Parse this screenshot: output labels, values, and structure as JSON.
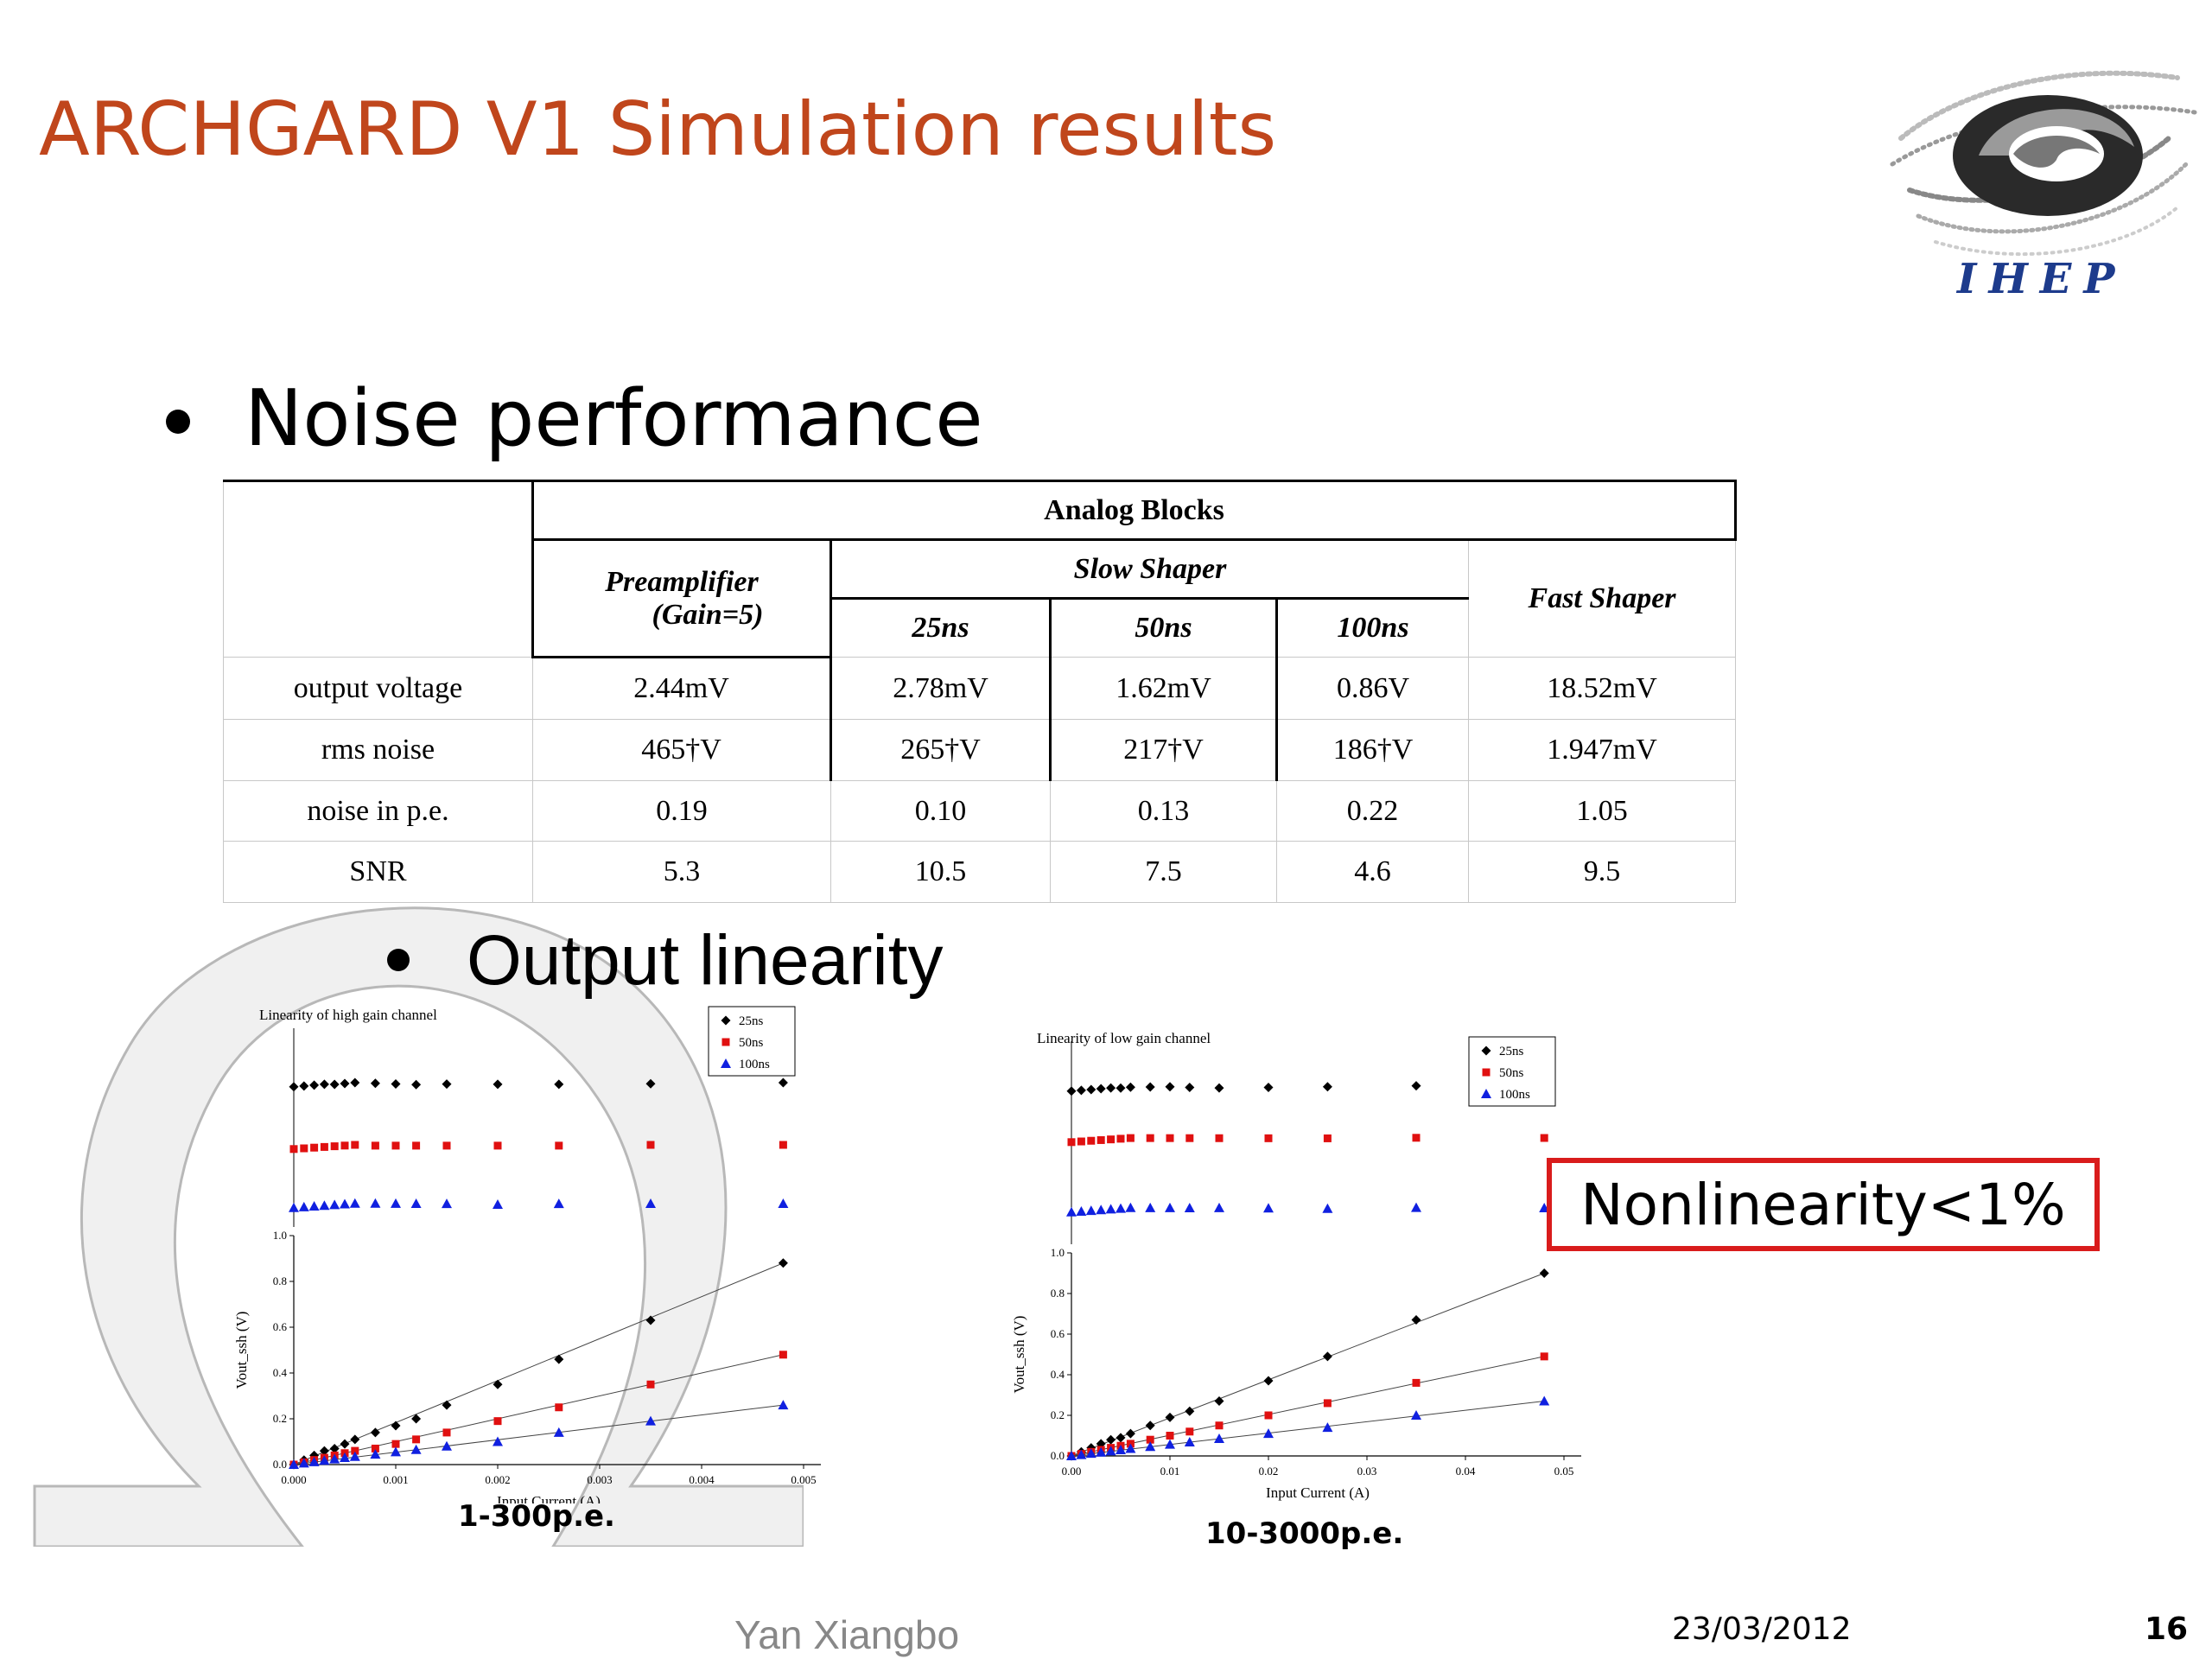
{
  "slide": {
    "title": "ARCHGARD V1 Simulation results",
    "bullet1": "Noise performance",
    "bullet2": "Output linearity",
    "logo_text": "IHEP",
    "caption_left": "1-300p.e.",
    "caption_right": "10-3000p.e.",
    "callout": "Nonlinearity<1%",
    "author": "Yan Xiangbo",
    "date": "23/03/2012",
    "page_number": "16"
  },
  "table": {
    "top_header": "Analog Blocks",
    "preamp": "Preamplifier",
    "preamp_gain": "(Gain=5)",
    "slow_shaper": "Slow Shaper",
    "fast_shaper": "Fast Shaper",
    "sub": [
      "25ns",
      "50ns",
      "100ns"
    ],
    "rows": [
      {
        "label": "output voltage",
        "values": [
          "2.44mV",
          "2.78mV",
          "1.62mV",
          "0.86V",
          "18.52mV"
        ]
      },
      {
        "label": "rms noise",
        "values": [
          "465†V",
          "265†V",
          "217†V",
          "186†V",
          "1.947mV"
        ]
      },
      {
        "label": "noise in p.e.",
        "values": [
          "0.19",
          "0.10",
          "0.13",
          "0.22",
          "1.05"
        ]
      },
      {
        "label": "SNR",
        "values": [
          "5.3",
          "10.5",
          "7.5",
          "4.6",
          "9.5"
        ]
      }
    ]
  },
  "colors": {
    "title": "#c0461c",
    "series": [
      "#000000",
      "#e01010",
      "#1020e0"
    ],
    "callout_border": "#d91c1c"
  },
  "chart_data": [
    {
      "type": "scatter",
      "title": "Linearity of high gain channel",
      "xlabel": "Input Current (A)",
      "ylabel": "Vout_ssh (V)",
      "xlim": [
        0,
        0.005
      ],
      "ylim": [
        0,
        1.0
      ],
      "xticks": [
        "0.000",
        "0.001",
        "0.002",
        "0.003",
        "0.004",
        "0.005"
      ],
      "yticks": [
        "0.0",
        "0.2",
        "0.4",
        "0.6",
        "0.8",
        "1.0"
      ],
      "legend": [
        "25ns",
        "50ns",
        "100ns"
      ],
      "legend_position": "top-right",
      "x": [
        0.0,
        0.0001,
        0.0002,
        0.0003,
        0.0004,
        0.0005,
        0.0006,
        0.0008,
        0.001,
        0.0012,
        0.0015,
        0.002,
        0.0026,
        0.0035,
        0.0048
      ],
      "series": [
        {
          "name": "25ns",
          "marker": "diamond",
          "values": [
            0.0,
            0.02,
            0.04,
            0.06,
            0.07,
            0.09,
            0.11,
            0.14,
            0.17,
            0.2,
            0.26,
            0.35,
            0.46,
            0.63,
            0.88
          ]
        },
        {
          "name": "50ns",
          "marker": "square",
          "values": [
            0.0,
            0.01,
            0.02,
            0.03,
            0.04,
            0.05,
            0.06,
            0.07,
            0.09,
            0.11,
            0.14,
            0.19,
            0.25,
            0.35,
            0.48
          ]
        },
        {
          "name": "100ns",
          "marker": "triangle",
          "values": [
            0.0,
            0.006,
            0.012,
            0.018,
            0.024,
            0.03,
            0.035,
            0.045,
            0.055,
            0.065,
            0.08,
            0.1,
            0.14,
            0.19,
            0.26
          ]
        }
      ]
    },
    {
      "type": "scatter",
      "title": "Linearity of low gain channel",
      "xlabel": "Input Current (A)",
      "ylabel": "Vout_ssh (V)",
      "xlim": [
        0,
        0.05
      ],
      "ylim": [
        0,
        1.0
      ],
      "xticks": [
        "0.00",
        "0.01",
        "0.02",
        "0.03",
        "0.04",
        "0.05"
      ],
      "yticks": [
        "0.0",
        "0.2",
        "0.4",
        "0.6",
        "0.8",
        "1.0"
      ],
      "legend": [
        "25ns",
        "50ns",
        "100ns"
      ],
      "legend_position": "top-right",
      "x": [
        0.0,
        0.001,
        0.002,
        0.003,
        0.004,
        0.005,
        0.006,
        0.008,
        0.01,
        0.012,
        0.015,
        0.02,
        0.026,
        0.035,
        0.048
      ],
      "series": [
        {
          "name": "25ns",
          "marker": "diamond",
          "values": [
            0.0,
            0.02,
            0.04,
            0.06,
            0.08,
            0.09,
            0.11,
            0.15,
            0.19,
            0.22,
            0.27,
            0.37,
            0.49,
            0.67,
            0.9
          ]
        },
        {
          "name": "50ns",
          "marker": "square",
          "values": [
            0.0,
            0.01,
            0.02,
            0.03,
            0.04,
            0.05,
            0.06,
            0.08,
            0.1,
            0.12,
            0.15,
            0.2,
            0.26,
            0.36,
            0.49
          ]
        },
        {
          "name": "100ns",
          "marker": "triangle",
          "values": [
            0.0,
            0.006,
            0.012,
            0.018,
            0.024,
            0.03,
            0.036,
            0.046,
            0.057,
            0.068,
            0.085,
            0.11,
            0.14,
            0.2,
            0.27
          ]
        }
      ]
    }
  ]
}
